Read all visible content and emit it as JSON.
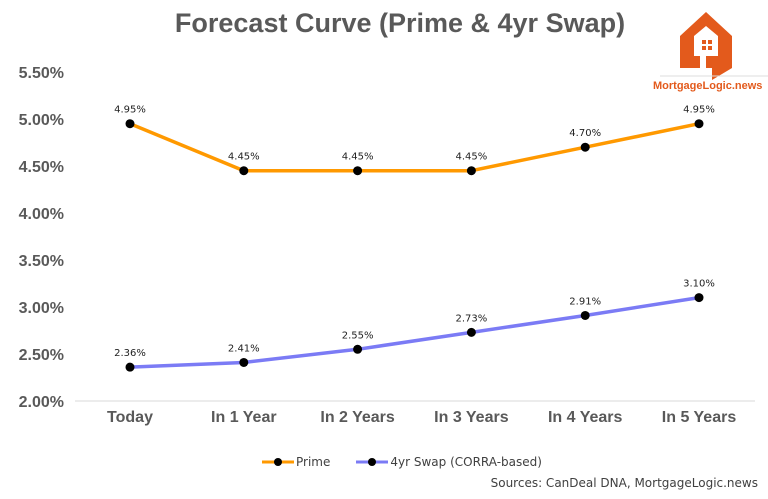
{
  "logo": {
    "text": "MortgageLogic.news",
    "color": "#e35a1c"
  },
  "chart_data": {
    "type": "line",
    "title": "Forecast Curve (Prime & 4yr Swap)",
    "categories": [
      "Today",
      "In 1 Year",
      "In 2 Years",
      "In 3 Years",
      "In 4 Years",
      "In 5 Years"
    ],
    "ylim": [
      2.0,
      5.5
    ],
    "yticks": [
      "2.00%",
      "2.50%",
      "3.00%",
      "3.50%",
      "4.00%",
      "4.50%",
      "5.00%",
      "5.50%"
    ],
    "grid": false,
    "legend": "bottom",
    "series": [
      {
        "name": "Prime",
        "color": "#ff9900",
        "values": [
          4.95,
          4.45,
          4.45,
          4.45,
          4.7,
          4.95
        ],
        "labels": [
          "4.95%",
          "4.45%",
          "4.45%",
          "4.45%",
          "4.70%",
          "4.95%"
        ]
      },
      {
        "name": "4yr Swap (CORRA-based)",
        "color": "#7b7bf5",
        "values": [
          2.36,
          2.41,
          2.55,
          2.73,
          2.91,
          3.1
        ],
        "labels": [
          "2.36%",
          "2.41%",
          "2.55%",
          "2.73%",
          "2.91%",
          "3.10%"
        ]
      }
    ],
    "source": "Sources: CanDeal DNA, MortgageLogic.news"
  }
}
